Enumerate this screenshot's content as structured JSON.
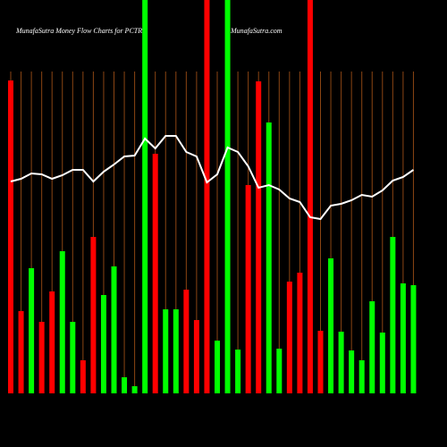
{
  "chart_data": {
    "type": "bar",
    "title": "MunafaSutra  Money Flow  Charts for PCTR",
    "subtitle": "MunafaSutra.com",
    "categories": [
      null,
      null,
      null,
      null,
      null,
      null,
      null,
      null,
      null,
      null,
      null,
      null,
      null,
      null,
      null,
      null,
      null,
      null,
      null,
      null,
      null,
      null,
      null,
      null,
      null,
      null,
      null,
      null,
      null,
      null,
      null,
      null,
      null,
      null,
      null,
      null,
      null,
      null,
      null,
      null
    ],
    "series": [
      {
        "type": "bar",
        "values": [
          350,
          92,
          140,
          80,
          114,
          159,
          80,
          37,
          175,
          110,
          142,
          18,
          8,
          440,
          268,
          94,
          94,
          116,
          82,
          440,
          59,
          440,
          49,
          233,
          349,
          303,
          50,
          125,
          135,
          440,
          70,
          151,
          69,
          48,
          37,
          103,
          68,
          175,
          123,
          121
        ],
        "colors": [
          "#ff0000",
          "#ff0000",
          "#00ff00",
          "#ff0000",
          "#ff0000",
          "#00ff00",
          "#00ff00",
          "#ff0000",
          "#ff0000",
          "#00ff00",
          "#00ff00",
          "#00ff00",
          "#00ff00",
          "#00ff00",
          "#ff0000",
          "#00ff00",
          "#00ff00",
          "#ff0000",
          "#ff0000",
          "#ff0000",
          "#00ff00",
          "#00ff00",
          "#00ff00",
          "#ff0000",
          "#ff0000",
          "#00ff00",
          "#00ff00",
          "#ff0000",
          "#ff0000",
          "#ff0000",
          "#ff0000",
          "#00ff00",
          "#00ff00",
          "#00ff00",
          "#00ff00",
          "#00ff00",
          "#00ff00",
          "#00ff00",
          "#00ff00",
          "#00ff00"
        ]
      },
      {
        "type": "line",
        "color": "#ffffff",
        "values": [
          237,
          240,
          246,
          245,
          240,
          244,
          250,
          250,
          237,
          248,
          256,
          265,
          266,
          285,
          274,
          288,
          288,
          270,
          265,
          236,
          245,
          275,
          270,
          254,
          230,
          233,
          228,
          218,
          214,
          197,
          195,
          210,
          212,
          216,
          222,
          220,
          227,
          238,
          242,
          250
        ]
      }
    ],
    "ylim": [
      0,
      440
    ],
    "grid_color": "#8b4513",
    "background": "#000000"
  }
}
